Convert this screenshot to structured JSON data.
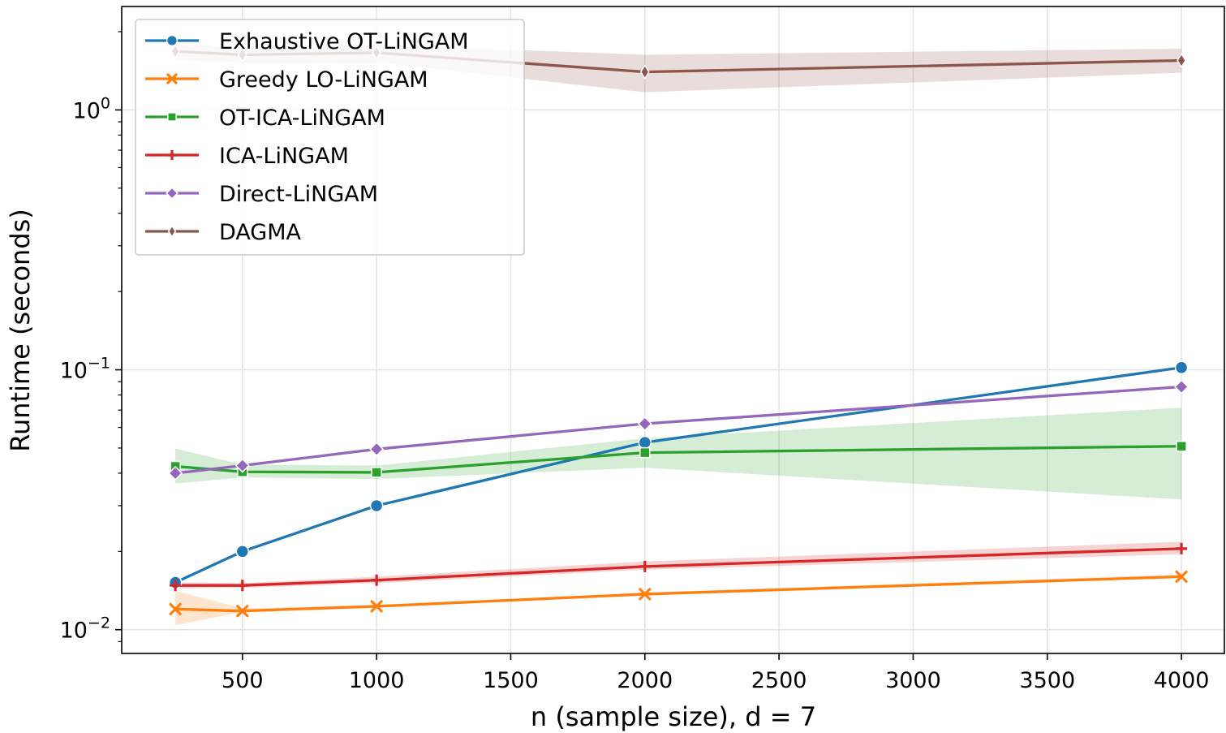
{
  "chart_data": {
    "type": "line",
    "title": "",
    "xlabel": "n (sample size), d = 7",
    "ylabel": "Runtime (seconds)",
    "yscale": "log",
    "xlim": [
      50,
      4160
    ],
    "ylim": [
      0.0081,
      2.5
    ],
    "x_ticks": [
      500,
      1000,
      1500,
      2000,
      2500,
      3000,
      3500,
      4000
    ],
    "y_major_ticks": [
      {
        "value": 0.01,
        "base": "10",
        "exp": "−2"
      },
      {
        "value": 0.1,
        "base": "10",
        "exp": "−1"
      },
      {
        "value": 1,
        "base": "10",
        "exp": "0"
      }
    ],
    "grid": true,
    "legend_position": "top-left",
    "x": [
      250,
      500,
      1000,
      2000,
      4000
    ],
    "series": [
      {
        "name": "Exhaustive OT-LiNGAM",
        "color": "#1f77b4",
        "marker": "circle",
        "values": [
          0.0152,
          0.02,
          0.03,
          0.0525,
          0.102
        ],
        "band": null
      },
      {
        "name": "Greedy LO-LiNGAM",
        "color": "#ff7f0e",
        "marker": "x",
        "values": [
          0.012,
          0.0118,
          0.0123,
          0.0137,
          0.016
        ],
        "band": {
          "lower": [
            0.0104,
            0.0117,
            0.0122,
            0.0136,
            0.0158
          ],
          "upper": [
            0.0141,
            0.0121,
            0.0124,
            0.0139,
            0.0163
          ]
        }
      },
      {
        "name": "OT-ICA-LiNGAM",
        "color": "#2ca02c",
        "marker": "square",
        "values": [
          0.0425,
          0.0405,
          0.0403,
          0.048,
          0.0508
        ],
        "band": {
          "lower": [
            0.0365,
            0.0385,
            0.038,
            0.042,
            0.0317
          ],
          "upper": [
            0.0497,
            0.0432,
            0.0428,
            0.0545,
            0.0715
          ]
        }
      },
      {
        "name": "ICA-LiNGAM",
        "color": "#d62728",
        "marker": "plus",
        "values": [
          0.0148,
          0.0148,
          0.0155,
          0.0175,
          0.0205
        ],
        "band": {
          "lower": [
            0.0144,
            0.0145,
            0.0151,
            0.017,
            0.0195
          ],
          "upper": [
            0.0152,
            0.0151,
            0.016,
            0.0183,
            0.0218
          ]
        }
      },
      {
        "name": "Direct-LiNGAM",
        "color": "#9467bd",
        "marker": "diamond",
        "values": [
          0.04,
          0.0428,
          0.0495,
          0.062,
          0.086
        ],
        "band": null
      },
      {
        "name": "DAGMA",
        "color": "#8c564b",
        "marker": "thin_diamond",
        "values": [
          1.68,
          1.63,
          1.66,
          1.4,
          1.55
        ],
        "band": {
          "lower": [
            1.55,
            1.52,
            1.52,
            1.17,
            1.39
          ],
          "upper": [
            1.8,
            1.74,
            1.78,
            1.63,
            1.72
          ]
        }
      }
    ]
  }
}
